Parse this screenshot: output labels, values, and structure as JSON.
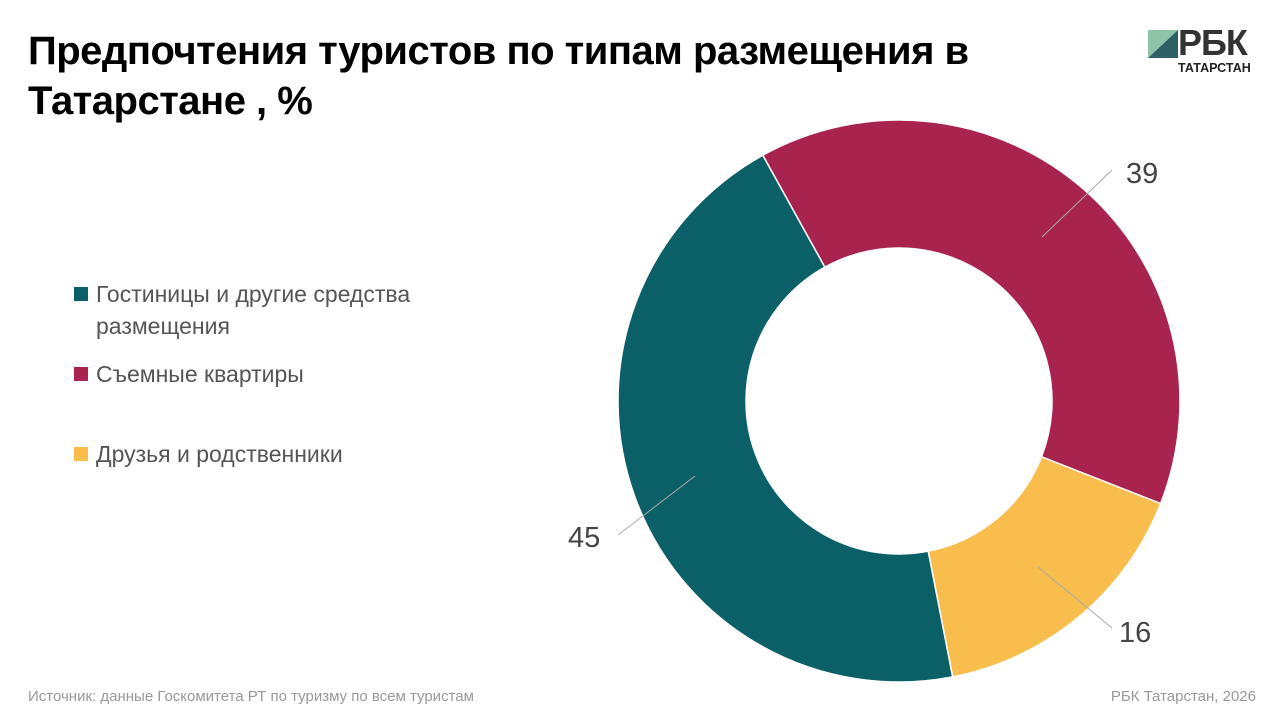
{
  "title": "Предпочтения туристов по типам размещения в Татарстане , %",
  "logo": {
    "main": "РБК",
    "sub": "ТАТАРСТАН"
  },
  "footer": {
    "source": "Источник: данные Госкомитета РТ по туризму по всем туристам",
    "credit": "РБК Татарстан, 2026"
  },
  "chart_data": {
    "type": "pie",
    "variant": "donut",
    "title": "Предпочтения туристов по типам размещения в Татарстане , %",
    "categories": [
      "Гостиницы и другие средства размещения",
      "Съемные квартиры",
      "Друзья и родственники"
    ],
    "values": [
      45,
      39,
      16
    ],
    "labels": [
      "45",
      "39",
      "16"
    ],
    "colors": [
      "#0b5f66",
      "#a8244e",
      "#f8bd4c"
    ],
    "legend_position": "left"
  }
}
